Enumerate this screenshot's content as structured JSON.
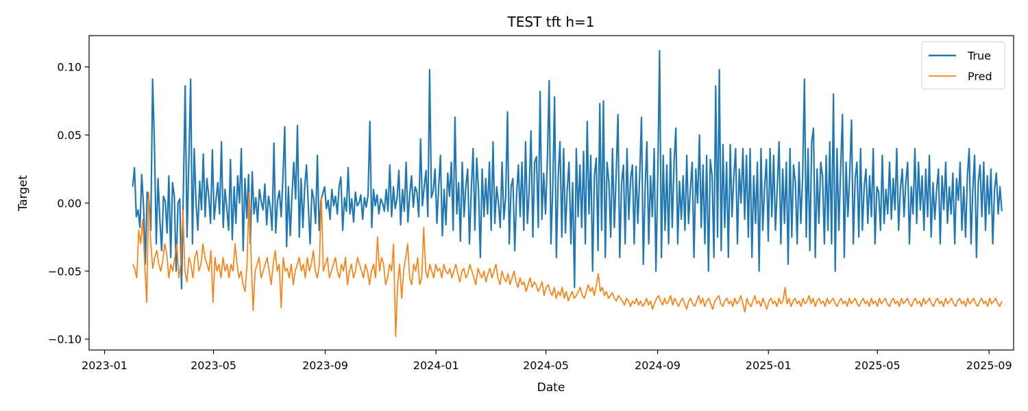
{
  "chart_data": {
    "type": "line",
    "title": "TEST tft h=1",
    "xlabel": "Date",
    "ylabel": "Target",
    "x_range": [
      "2022-12-15",
      "2025-09-28"
    ],
    "ylim": [
      -0.108,
      0.123
    ],
    "x_ticks": [
      "2023-01",
      "2023-05",
      "2023-09",
      "2024-01",
      "2024-05",
      "2024-09",
      "2025-01",
      "2025-05",
      "2025-09"
    ],
    "y_ticks": [
      -0.1,
      -0.05,
      0.0,
      0.05,
      0.1
    ],
    "y_tick_labels": [
      "−0.10",
      "−0.05",
      "0.00",
      "0.05",
      "0.10"
    ],
    "legend": {
      "position": "top-right",
      "entries": [
        "True",
        "Pred"
      ]
    },
    "grid": false,
    "series": [
      {
        "name": "True",
        "color": "#1f77b4",
        "start_date": "2023-02-01",
        "end_date": "2025-09-15",
        "frequency": "daily",
        "values_approx": [
          0.012,
          0.026,
          -0.01,
          -0.005,
          -0.018,
          0.021,
          -0.003,
          -0.045,
          0.008,
          0.002,
          -0.02,
          0.091,
          0.044,
          -0.03,
          0.018,
          -0.012,
          -0.035,
          0.005,
          0.001,
          -0.022,
          0.02,
          -0.04,
          0.015,
          0.005,
          -0.05,
          0.0,
          0.003,
          -0.063,
          0.01,
          0.086,
          -0.025,
          0.03,
          0.091,
          -0.03,
          0.04,
          0.0,
          -0.02,
          0.016,
          -0.005,
          0.036,
          -0.01,
          0.018,
          0.005,
          -0.015,
          0.039,
          -0.012,
          0.002,
          0.015,
          -0.008,
          0.045,
          -0.018,
          0.01,
          -0.004,
          -0.02,
          0.032,
          -0.027,
          0.012,
          -0.015,
          0.02,
          0.0,
          0.04,
          -0.035,
          0.018,
          -0.011,
          0.021,
          -0.03,
          0.023,
          -0.008,
          0.004,
          -0.014,
          0.01,
          0.001,
          -0.005,
          0.014,
          -0.016,
          0.005,
          -0.003,
          -0.02,
          0.044,
          -0.022,
          0.002,
          0.009,
          -0.01,
          0.02,
          0.056,
          -0.032,
          0.012,
          -0.024,
          0.006,
          0.03,
          0.003,
          0.057,
          -0.025,
          0.018,
          -0.018,
          0.012,
          0.028,
          -0.002,
          -0.03,
          0.01,
          0.003,
          -0.015,
          0.035,
          -0.02,
          0.002,
          0.007,
          0.012,
          -0.004,
          0.002,
          -0.012,
          0.01,
          -0.002,
          0.005,
          -0.008,
          0.012,
          0.019,
          -0.02,
          0.004,
          -0.006,
          0.026,
          -0.008,
          0.003,
          -0.014,
          0.008,
          -0.002,
          0.0,
          0.006,
          -0.012,
          0.004,
          -0.003,
          0.006,
          0.06,
          -0.018,
          0.01,
          -0.002,
          0.006,
          -0.008,
          0.003,
          0.0,
          -0.006,
          0.01,
          -0.006,
          0.028,
          -0.01,
          0.012,
          -0.004,
          0.003,
          0.024,
          -0.016,
          0.01,
          -0.006,
          0.03,
          -0.014,
          0.006,
          0.02,
          -0.003,
          0.012,
          0.008,
          -0.01,
          0.047,
          -0.002,
          0.012,
          0.024,
          -0.01,
          0.098,
          0.004,
          0.009,
          0.025,
          -0.015,
          0.012,
          0.035,
          -0.024,
          0.01,
          -0.016,
          0.022,
          0.005,
          0.03,
          -0.02,
          0.063,
          -0.008,
          0.015,
          -0.028,
          0.03,
          -0.01,
          0.012,
          0.025,
          -0.03,
          0.01,
          0.04,
          -0.02,
          0.033,
          0.01,
          -0.04,
          0.025,
          -0.01,
          0.018,
          -0.008,
          0.03,
          -0.02,
          0.045,
          -0.015,
          0.012,
          0.0,
          -0.018,
          0.03,
          -0.012,
          0.005,
          0.067,
          -0.03,
          0.012,
          0.018,
          -0.035,
          0.005,
          0.028,
          -0.01,
          0.03,
          -0.02,
          0.045,
          -0.015,
          0.01,
          0.053,
          -0.025,
          0.03,
          0.034,
          -0.018,
          0.082,
          -0.012,
          0.022,
          -0.008,
          0.03,
          0.09,
          -0.03,
          0.012,
          0.078,
          -0.04,
          0.02,
          0.045,
          -0.025,
          0.04,
          -0.022,
          0.01,
          0.03,
          -0.03,
          0.015,
          -0.062,
          0.04,
          -0.01,
          0.028,
          -0.018,
          0.038,
          -0.03,
          0.06,
          -0.008,
          0.035,
          -0.05,
          0.02,
          0.033,
          -0.035,
          0.073,
          -0.02,
          0.075,
          -0.04,
          0.03,
          0.015,
          -0.025,
          0.04,
          -0.018,
          0.02,
          0.065,
          -0.04,
          0.015,
          0.028,
          -0.03,
          0.04,
          -0.012,
          0.018,
          0.028,
          -0.03,
          0.027,
          -0.015,
          0.02,
          0.063,
          -0.045,
          0.01,
          0.045,
          -0.03,
          0.02,
          -0.01,
          0.04,
          -0.05,
          0.02,
          0.112,
          -0.04,
          0.035,
          -0.02,
          0.028,
          -0.03,
          0.04,
          -0.018,
          0.03,
          0.055,
          -0.03,
          0.016,
          -0.012,
          0.02,
          -0.02,
          0.035,
          -0.015,
          0.01,
          0.03,
          -0.04,
          0.025,
          0.0,
          0.05,
          -0.018,
          0.028,
          -0.03,
          0.035,
          -0.05,
          0.032,
          0.02,
          -0.04,
          0.086,
          -0.025,
          0.098,
          -0.035,
          0.043,
          -0.018,
          0.03,
          -0.04,
          0.043,
          -0.01,
          0.02,
          0.04,
          -0.03,
          0.025,
          0.0,
          0.04,
          -0.012,
          0.035,
          -0.025,
          0.04,
          -0.04,
          0.02,
          -0.015,
          0.03,
          -0.05,
          0.04,
          -0.02,
          0.012,
          0.032,
          -0.028,
          0.04,
          -0.01,
          0.035,
          -0.02,
          0.012,
          0.045,
          -0.03,
          0.025,
          -0.015,
          0.03,
          -0.045,
          0.04,
          -0.025,
          0.028,
          0.015,
          -0.03,
          0.03,
          -0.015,
          0.02,
          0.091,
          -0.025,
          0.04,
          -0.035,
          0.045,
          0.055,
          -0.04,
          0.025,
          -0.015,
          0.03,
          0.02,
          -0.03,
          0.035,
          -0.02,
          0.045,
          -0.03,
          0.08,
          -0.05,
          0.04,
          -0.02,
          0.025,
          0.065,
          -0.04,
          0.03,
          -0.01,
          0.02,
          0.061,
          -0.03,
          0.018,
          0.03,
          -0.025,
          0.04,
          -0.02,
          0.012,
          0.025,
          -0.015,
          0.02,
          -0.01,
          0.04,
          -0.03,
          0.012,
          0.008,
          -0.02,
          0.035,
          -0.015,
          0.01,
          -0.008,
          0.03,
          -0.012,
          0.018,
          -0.005,
          0.04,
          -0.02,
          0.01,
          0.025,
          -0.01,
          0.015,
          0.03,
          -0.03,
          0.012,
          -0.008,
          0.04,
          -0.015,
          0.03,
          -0.005,
          0.02,
          -0.02,
          0.025,
          -0.01,
          0.035,
          -0.025,
          0.015,
          -0.012,
          0.01,
          0.025,
          -0.03,
          0.02,
          -0.005,
          0.03,
          -0.015,
          0.012,
          -0.008,
          0.022,
          -0.03,
          0.018,
          0.002,
          0.03,
          -0.02,
          0.012,
          -0.025,
          0.02,
          0.04,
          -0.03,
          0.01,
          0.035,
          -0.04,
          0.015,
          0.028,
          -0.01,
          0.03,
          -0.02,
          0.02,
          -0.008,
          0.025,
          -0.03,
          0.01,
          0.022,
          -0.008,
          0.012,
          -0.006
        ]
      },
      {
        "name": "Pred",
        "color": "#ff7f0e",
        "start_date": "2023-02-01",
        "end_date": "2025-09-15",
        "frequency": "daily",
        "values_approx": [
          -0.045,
          -0.048,
          -0.055,
          -0.02,
          -0.03,
          -0.012,
          -0.045,
          -0.073,
          0.008,
          -0.03,
          -0.048,
          -0.04,
          -0.035,
          -0.045,
          -0.05,
          -0.042,
          -0.03,
          -0.038,
          -0.055,
          -0.045,
          -0.05,
          -0.04,
          -0.03,
          -0.055,
          -0.045,
          -0.005,
          -0.05,
          -0.058,
          -0.04,
          -0.045,
          -0.055,
          -0.04,
          -0.035,
          -0.05,
          -0.045,
          -0.03,
          -0.04,
          -0.045,
          -0.05,
          -0.035,
          -0.073,
          -0.04,
          -0.05,
          -0.045,
          -0.055,
          -0.04,
          -0.05,
          -0.045,
          -0.055,
          -0.045,
          -0.05,
          -0.03,
          -0.045,
          -0.055,
          -0.05,
          -0.06,
          -0.065,
          -0.045,
          0.008,
          -0.04,
          -0.079,
          -0.05,
          -0.045,
          -0.04,
          -0.055,
          -0.05,
          -0.045,
          -0.04,
          -0.05,
          -0.06,
          -0.045,
          -0.035,
          -0.05,
          -0.045,
          -0.077,
          -0.04,
          -0.05,
          -0.048,
          -0.055,
          -0.045,
          -0.06,
          -0.05,
          -0.045,
          -0.04,
          -0.05,
          -0.045,
          -0.055,
          -0.04,
          -0.05,
          -0.045,
          -0.035,
          -0.05,
          -0.055,
          -0.045,
          0.005,
          -0.05,
          -0.045,
          -0.04,
          -0.055,
          -0.05,
          -0.045,
          -0.04,
          -0.05,
          -0.055,
          -0.045,
          -0.05,
          -0.04,
          -0.06,
          -0.05,
          -0.045,
          -0.055,
          -0.05,
          -0.04,
          -0.045,
          -0.05,
          -0.055,
          -0.045,
          -0.05,
          -0.06,
          -0.05,
          -0.045,
          -0.055,
          -0.025,
          -0.05,
          -0.04,
          -0.045,
          -0.06,
          -0.055,
          -0.045,
          -0.05,
          -0.03,
          -0.098,
          -0.06,
          -0.045,
          -0.07,
          -0.05,
          -0.04,
          -0.03,
          -0.055,
          -0.06,
          -0.045,
          -0.05,
          -0.04,
          -0.06,
          -0.055,
          -0.018,
          -0.05,
          -0.055,
          -0.045,
          -0.05,
          -0.055,
          -0.045,
          -0.05,
          -0.048,
          -0.055,
          -0.045,
          -0.05,
          -0.052,
          -0.048,
          -0.055,
          -0.05,
          -0.045,
          -0.052,
          -0.058,
          -0.05,
          -0.048,
          -0.055,
          -0.052,
          -0.045,
          -0.05,
          -0.055,
          -0.06,
          -0.048,
          -0.052,
          -0.055,
          -0.05,
          -0.058,
          -0.052,
          -0.048,
          -0.055,
          -0.05,
          -0.045,
          -0.055,
          -0.06,
          -0.05,
          -0.055,
          -0.058,
          -0.052,
          -0.06,
          -0.055,
          -0.05,
          -0.058,
          -0.062,
          -0.055,
          -0.06,
          -0.058,
          -0.065,
          -0.06,
          -0.055,
          -0.062,
          -0.058,
          -0.06,
          -0.065,
          -0.062,
          -0.058,
          -0.068,
          -0.062,
          -0.06,
          -0.065,
          -0.068,
          -0.062,
          -0.07,
          -0.065,
          -0.068,
          -0.062,
          -0.07,
          -0.065,
          -0.072,
          -0.068,
          -0.065,
          -0.07,
          -0.068,
          -0.065,
          -0.062,
          -0.068,
          -0.07,
          -0.065,
          -0.06,
          -0.065,
          -0.062,
          -0.068,
          -0.06,
          -0.052,
          -0.065,
          -0.062,
          -0.068,
          -0.065,
          -0.07,
          -0.068,
          -0.066,
          -0.07,
          -0.072,
          -0.068,
          -0.07,
          -0.072,
          -0.075,
          -0.07,
          -0.072,
          -0.076,
          -0.072,
          -0.074,
          -0.07,
          -0.075,
          -0.072,
          -0.076,
          -0.074,
          -0.07,
          -0.075,
          -0.072,
          -0.078,
          -0.074,
          -0.07,
          -0.068,
          -0.072,
          -0.075,
          -0.07,
          -0.074,
          -0.072,
          -0.068,
          -0.075,
          -0.07,
          -0.073,
          -0.076,
          -0.072,
          -0.07,
          -0.074,
          -0.078,
          -0.072,
          -0.07,
          -0.074,
          -0.076,
          -0.072,
          -0.068,
          -0.074,
          -0.07,
          -0.076,
          -0.072,
          -0.07,
          -0.074,
          -0.078,
          -0.072,
          -0.07,
          -0.068,
          -0.074,
          -0.076,
          -0.072,
          -0.07,
          -0.074,
          -0.072,
          -0.076,
          -0.07,
          -0.074,
          -0.072,
          -0.068,
          -0.074,
          -0.08,
          -0.07,
          -0.074,
          -0.076,
          -0.072,
          -0.068,
          -0.074,
          -0.072,
          -0.076,
          -0.07,
          -0.074,
          -0.078,
          -0.072,
          -0.07,
          -0.074,
          -0.072,
          -0.076,
          -0.07,
          -0.074,
          -0.072,
          -0.062,
          -0.074,
          -0.07,
          -0.076,
          -0.072,
          -0.07,
          -0.074,
          -0.072,
          -0.076,
          -0.07,
          -0.074,
          -0.072,
          -0.068,
          -0.074,
          -0.07,
          -0.076,
          -0.072,
          -0.07,
          -0.074,
          -0.072,
          -0.076,
          -0.07,
          -0.074,
          -0.072,
          -0.07,
          -0.074,
          -0.076,
          -0.072,
          -0.07,
          -0.074,
          -0.072,
          -0.076,
          -0.07,
          -0.074,
          -0.072,
          -0.07,
          -0.074,
          -0.076,
          -0.072,
          -0.07,
          -0.074,
          -0.072,
          -0.076,
          -0.07,
          -0.074,
          -0.072,
          -0.076,
          -0.07,
          -0.074,
          -0.072,
          -0.07,
          -0.074,
          -0.076,
          -0.072,
          -0.07,
          -0.074,
          -0.072,
          -0.076,
          -0.07,
          -0.074,
          -0.072,
          -0.07,
          -0.074,
          -0.076,
          -0.072,
          -0.07,
          -0.074,
          -0.072,
          -0.076,
          -0.07,
          -0.074,
          -0.072,
          -0.07,
          -0.074,
          -0.076,
          -0.072,
          -0.07,
          -0.074,
          -0.072,
          -0.076,
          -0.07,
          -0.074,
          -0.072,
          -0.07,
          -0.074,
          -0.076,
          -0.072,
          -0.07,
          -0.074,
          -0.072,
          -0.076,
          -0.07,
          -0.074,
          -0.072,
          -0.07,
          -0.074,
          -0.076,
          -0.072,
          -0.07,
          -0.074,
          -0.072,
          -0.076,
          -0.07,
          -0.074,
          -0.072,
          -0.07,
          -0.074,
          -0.076,
          -0.072
        ]
      }
    ]
  }
}
